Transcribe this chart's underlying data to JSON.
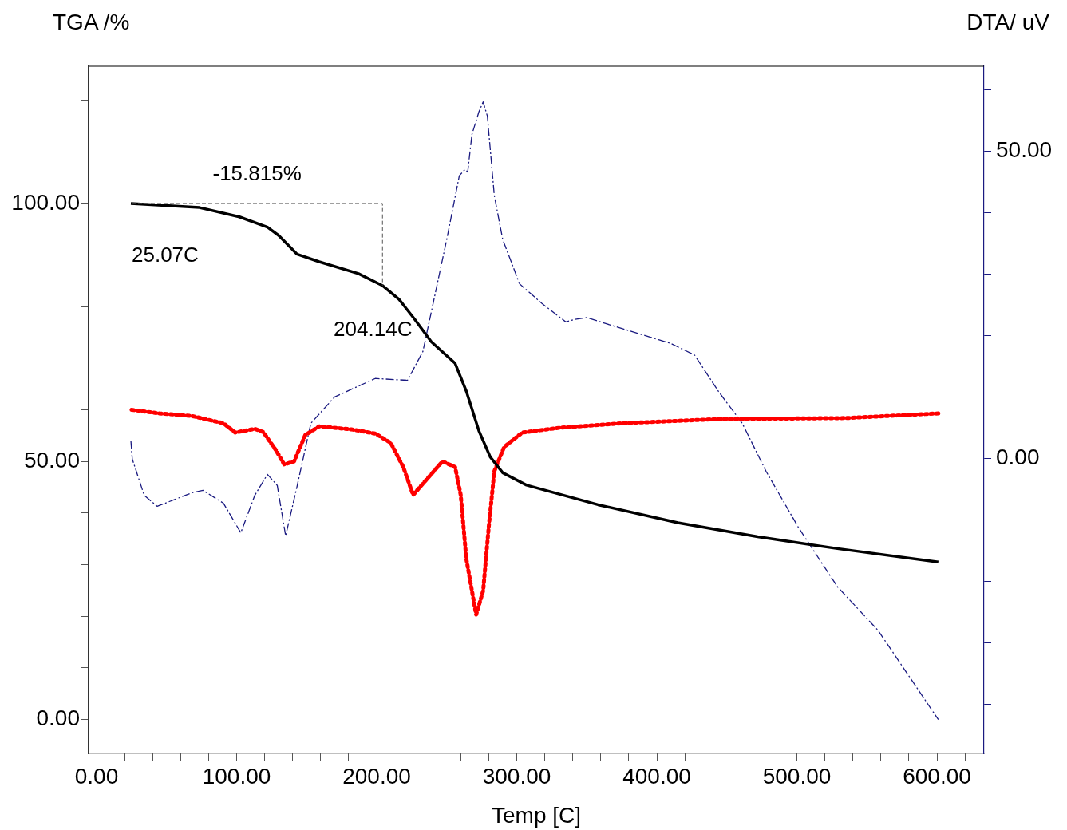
{
  "chart_data": {
    "type": "line",
    "ylabel": "TGA /%",
    "y2label": "DTA/ uV",
    "xlabel": "Temp [C]",
    "xlim": [
      -5.7,
      633.6
    ],
    "ylim": [
      -6.6,
      126.6
    ],
    "y2lim": [
      -48,
      63.8
    ],
    "xticks": [
      {
        "value": 0,
        "label": "0.00"
      },
      {
        "value": 20,
        "label": null
      },
      {
        "value": 40,
        "label": null
      },
      {
        "value": 60,
        "label": null
      },
      {
        "value": 80,
        "label": null
      },
      {
        "value": 100,
        "label": "100.00"
      },
      {
        "value": 120,
        "label": null
      },
      {
        "value": 140,
        "label": null
      },
      {
        "value": 160,
        "label": null
      },
      {
        "value": 180,
        "label": null
      },
      {
        "value": 200,
        "label": "200.00"
      },
      {
        "value": 220,
        "label": null
      },
      {
        "value": 240,
        "label": null
      },
      {
        "value": 260,
        "label": null
      },
      {
        "value": 280,
        "label": null
      },
      {
        "value": 300,
        "label": "300.00"
      },
      {
        "value": 320,
        "label": null
      },
      {
        "value": 340,
        "label": null
      },
      {
        "value": 360,
        "label": null
      },
      {
        "value": 380,
        "label": null
      },
      {
        "value": 400,
        "label": "400.00"
      },
      {
        "value": 420,
        "label": null
      },
      {
        "value": 440,
        "label": null
      },
      {
        "value": 460,
        "label": null
      },
      {
        "value": 480,
        "label": null
      },
      {
        "value": 500,
        "label": "500.00"
      },
      {
        "value": 520,
        "label": null
      },
      {
        "value": 540,
        "label": null
      },
      {
        "value": 560,
        "label": null
      },
      {
        "value": 580,
        "label": null
      },
      {
        "value": 600,
        "label": "600.00"
      },
      {
        "value": 620,
        "label": null
      }
    ],
    "yticks": [
      {
        "value": 0,
        "label": "0.00"
      },
      {
        "value": 10,
        "label": null
      },
      {
        "value": 20,
        "label": null
      },
      {
        "value": 30,
        "label": null
      },
      {
        "value": 40,
        "label": null
      },
      {
        "value": 50,
        "label": "50.00"
      },
      {
        "value": 60,
        "label": null
      },
      {
        "value": 70,
        "label": null
      },
      {
        "value": 80,
        "label": null
      },
      {
        "value": 90,
        "label": null
      },
      {
        "value": 100,
        "label": "100.00"
      },
      {
        "value": 110,
        "label": null
      },
      {
        "value": 120,
        "label": null
      }
    ],
    "y2ticks": [
      {
        "value": -40,
        "label": null
      },
      {
        "value": -30,
        "label": null
      },
      {
        "value": -20,
        "label": null
      },
      {
        "value": -10,
        "label": null
      },
      {
        "value": 0,
        "label": "0.00"
      },
      {
        "value": 10,
        "label": null
      },
      {
        "value": 20,
        "label": null
      },
      {
        "value": 30,
        "label": null
      },
      {
        "value": 40,
        "label": null
      },
      {
        "value": 50,
        "label": "50.00"
      },
      {
        "value": 60,
        "label": null
      }
    ],
    "grid": false,
    "legend": false,
    "marker": "none",
    "annotations": [
      "-15.815%",
      {
        "text": "25.07C",
        "x": 25.07,
        "y": 100
      },
      {
        "text": "204.14C",
        "x": 204.14,
        "y": 84.1
      }
    ],
    "series": [
      {
        "color": "#555555",
        "line_style": "dashed",
        "x": [
          25.07,
          204.14,
          204.14
        ],
        "values": [
          100,
          100,
          84.1
        ]
      },
      {
        "color": "#000000",
        "line_style": "solid",
        "x": [
          24.5,
          73.5,
          102,
          122,
          130,
          143,
          159,
          187,
          204,
          216,
          227,
          239,
          256,
          264,
          273,
          281,
          290,
          307,
          358,
          415,
          472,
          529,
          601
        ],
        "values": [
          100,
          99.2,
          97.4,
          95.4,
          93.8,
          90.2,
          88.7,
          86.4,
          84.1,
          81.4,
          77.6,
          73.2,
          69,
          63.6,
          55.9,
          50.9,
          47.8,
          45.4,
          41.6,
          38.1,
          35.4,
          33.1,
          30.5
        ]
      },
      {
        "color": "#ff0000",
        "line_style": "dotted",
        "x": [
          25,
          45,
          68,
          90.6,
          99,
          113,
          119,
          128,
          134,
          141,
          149,
          159,
          182,
          199,
          210,
          219,
          226,
          236,
          247,
          256,
          260,
          264,
          271,
          276,
          280,
          284,
          291,
          304,
          330,
          375,
          444,
          535,
          601
        ],
        "values": [
          60,
          59.3,
          58.8,
          57.4,
          55.6,
          56.3,
          55.7,
          52.2,
          49.4,
          50,
          55.1,
          56.8,
          56.2,
          55.4,
          53.6,
          48.9,
          43.5,
          46.6,
          50,
          48.9,
          43.5,
          31.1,
          20.3,
          24.9,
          37.3,
          48.1,
          52.8,
          55.6,
          56.5,
          57.4,
          58.2,
          58.4,
          59.3
        ]
      },
      {
        "color": "#1a1a80",
        "line_style": "dashed",
        "axis": "y2",
        "x": [
          24.5,
          25.5,
          34,
          43.3,
          68,
          76,
          90.6,
          103,
          113,
          122,
          129,
          135,
          143,
          153,
          170,
          199,
          222,
          233,
          250,
          259,
          263,
          265,
          268,
          273,
          276,
          279,
          284,
          290,
          302,
          318,
          335,
          341,
          350,
          364,
          387,
          410,
          427,
          444,
          461,
          478,
          501,
          529,
          558,
          601
        ],
        "values": [
          2.9,
          -0.1,
          -6,
          -7.8,
          -5.6,
          -5.2,
          -7.3,
          -12.1,
          -6,
          -2.6,
          -4.4,
          -12.6,
          -4.7,
          5.7,
          10,
          13,
          12.7,
          17.4,
          35.6,
          46,
          47,
          46.6,
          52.7,
          56.4,
          58,
          55.7,
          42.7,
          35.6,
          28.4,
          25.2,
          22.2,
          22.6,
          22.9,
          21.9,
          20.3,
          18.7,
          16.8,
          10.9,
          5.7,
          -2.1,
          -11.2,
          -20.9,
          -28,
          -42.5
        ]
      }
    ]
  }
}
